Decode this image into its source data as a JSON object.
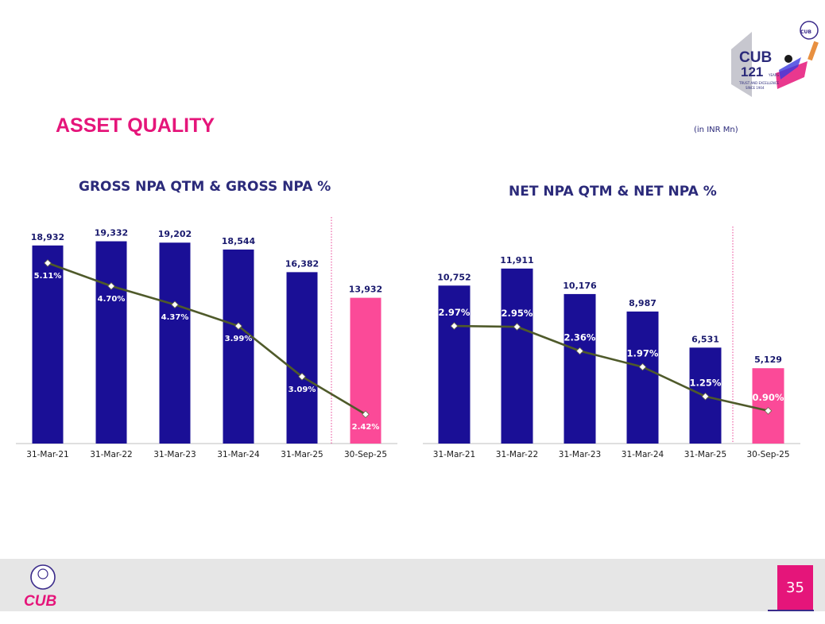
{
  "header": {
    "title": "ASSET QUALITY",
    "units": "(in INR Mn)",
    "brand_logo": {
      "name": "CUB",
      "years": "121",
      "years_suffix": "YEARS",
      "tagline": "TRUST AND EXCELLENCE",
      "since": "SINCE 1904",
      "emblem_text": "CUB"
    }
  },
  "footer": {
    "logo_text": "CUB",
    "page_number": "35"
  },
  "colors": {
    "bar": "#1a0f96",
    "bar_highlight": "#fb4a98",
    "line": "#4f5a2a",
    "title_pink": "#e5157a",
    "title_navy": "#2b2a7a"
  },
  "chart_data": [
    {
      "type": "bar",
      "title": "GROSS NPA QTM & GROSS NPA %",
      "categories": [
        "31-Mar-21",
        "31-Mar-22",
        "31-Mar-23",
        "31-Mar-24",
        "31-Mar-25",
        "30-Sep-25"
      ],
      "series": [
        {
          "name": "Gross NPA",
          "values": [
            18932,
            19332,
            19202,
            18544,
            16382,
            13932
          ],
          "value_labels": [
            "18,932",
            "19,332",
            "19,202",
            "18,544",
            "16,382",
            "13,932"
          ]
        },
        {
          "name": "Gross NPA %",
          "type": "line",
          "values": [
            5.11,
            4.7,
            4.37,
            3.99,
            3.09,
            2.42
          ],
          "value_labels": [
            "5.11%",
            "4.70%",
            "4.37%",
            "3.99%",
            "3.09%",
            "2.42%"
          ]
        }
      ],
      "highlight_index": 5,
      "ylim": [
        0,
        21500
      ],
      "pct_ylim": [
        1.9,
        5.9
      ]
    },
    {
      "type": "bar",
      "title": "NET NPA QTM & NET NPA %",
      "categories": [
        "31-Mar-21",
        "31-Mar-22",
        "31-Mar-23",
        "31-Mar-24",
        "31-Mar-25",
        "30-Sep-25"
      ],
      "series": [
        {
          "name": "Net NPA",
          "values": [
            10752,
            11911,
            10176,
            8987,
            6531,
            5129
          ],
          "value_labels": [
            "10,752",
            "11,911",
            "10,176",
            "8,987",
            "6,531",
            "5,129"
          ]
        },
        {
          "name": "Net NPA %",
          "type": "line",
          "values": [
            2.97,
            2.95,
            2.36,
            1.97,
            1.25,
            0.9
          ],
          "value_labels": [
            "2.97%",
            "2.95%",
            "2.36%",
            "1.97%",
            "1.25%",
            "0.90%"
          ]
        }
      ],
      "highlight_index": 5,
      "ylim": [
        0,
        14500
      ],
      "pct_ylim": [
        0.1,
        5.3
      ]
    }
  ]
}
